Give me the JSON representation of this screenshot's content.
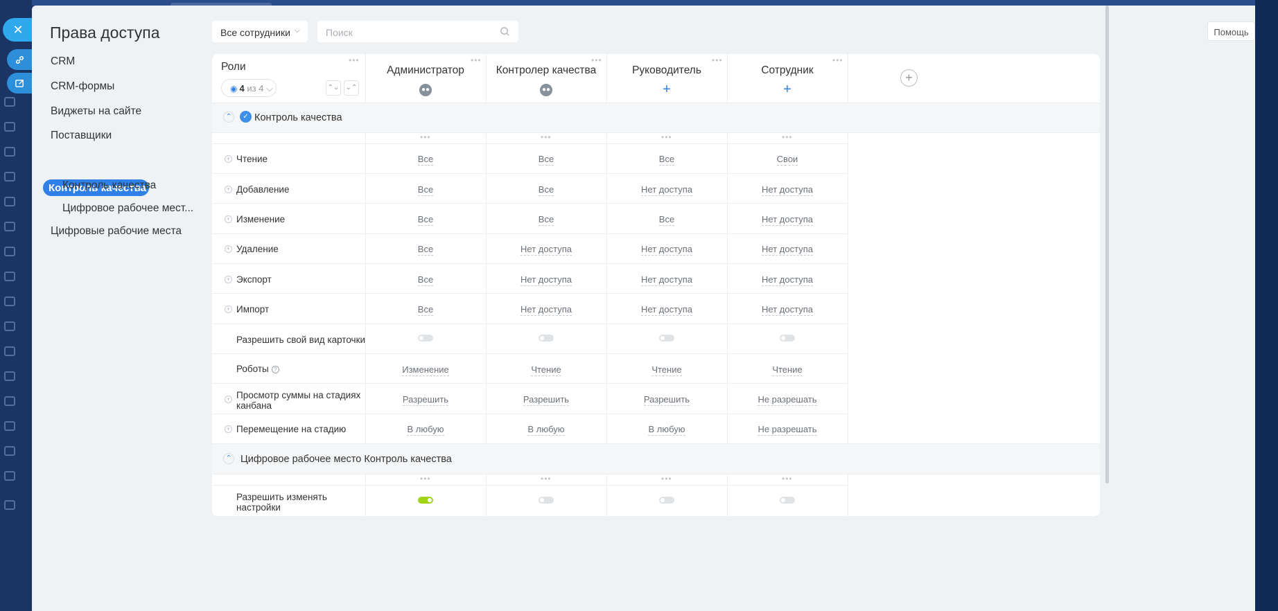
{
  "page_title": "Права доступа",
  "filter": {
    "label": "Все сотрудники",
    "chevron_icon": "chevron-down-icon"
  },
  "search": {
    "placeholder": "Поиск",
    "icon": "search-icon"
  },
  "help_label": "Помощь",
  "menu": {
    "items": [
      "CRM",
      "CRM-формы",
      "Виджеты на сайте",
      "Поставщики"
    ],
    "active": "Контроль качества",
    "sub_items": [
      "Контроль качества",
      "Цифровое рабочее мест..."
    ],
    "last": "Цифровые рабочие места"
  },
  "grid": {
    "roles_label": "Роли",
    "counter": {
      "shown": "4",
      "of_text": "из 4"
    },
    "roles": [
      {
        "name": "Администратор",
        "icon": "users-icon"
      },
      {
        "name": "Контролер качества",
        "icon": "users-icon"
      },
      {
        "name": "Руководитель",
        "icon": "plus-icon"
      },
      {
        "name": "Сотрудник",
        "icon": "plus-icon"
      }
    ],
    "sections": [
      {
        "title": "Контроль качества"
      },
      {
        "title": "Цифровое рабочее место Контроль качества"
      }
    ],
    "rows": [
      {
        "label": "Чтение",
        "values": [
          "Все",
          "Все",
          "Все",
          "Свои"
        ]
      },
      {
        "label": "Добавление",
        "values": [
          "Все",
          "Все",
          "Нет доступа",
          "Нет доступа"
        ]
      },
      {
        "label": "Изменение",
        "values": [
          "Все",
          "Все",
          "Все",
          "Нет доступа"
        ]
      },
      {
        "label": "Удаление",
        "values": [
          "Все",
          "Нет доступа",
          "Нет доступа",
          "Нет доступа"
        ]
      },
      {
        "label": "Экспорт",
        "values": [
          "Все",
          "Нет доступа",
          "Нет доступа",
          "Нет доступа"
        ]
      },
      {
        "label": "Импорт",
        "values": [
          "Все",
          "Нет доступа",
          "Нет доступа",
          "Нет доступа"
        ]
      },
      {
        "label": "Разрешить свой вид карточки",
        "toggles": [
          false,
          false,
          false,
          false
        ]
      },
      {
        "label": "Роботы",
        "values": [
          "Изменение",
          "Чтение",
          "Чтение",
          "Чтение"
        ]
      },
      {
        "label_line1": "Просмотр суммы на стадиях",
        "label_line2": "канбана",
        "values": [
          "Разрешить",
          "Разрешить",
          "Разрешить",
          "Не разрешать"
        ]
      },
      {
        "label": "Перемещение на стадию",
        "values": [
          "В любую",
          "В любую",
          "В любую",
          "Не разрешать"
        ]
      }
    ],
    "section2_rows": [
      {
        "label_line1": "Разрешить изменять",
        "label_line2": "настройки",
        "toggles": [
          true,
          false,
          false,
          false
        ]
      }
    ]
  },
  "colors": {
    "accent": "#2f80e8",
    "toggle_on": "#a1d317",
    "background": "#eef2f4"
  }
}
